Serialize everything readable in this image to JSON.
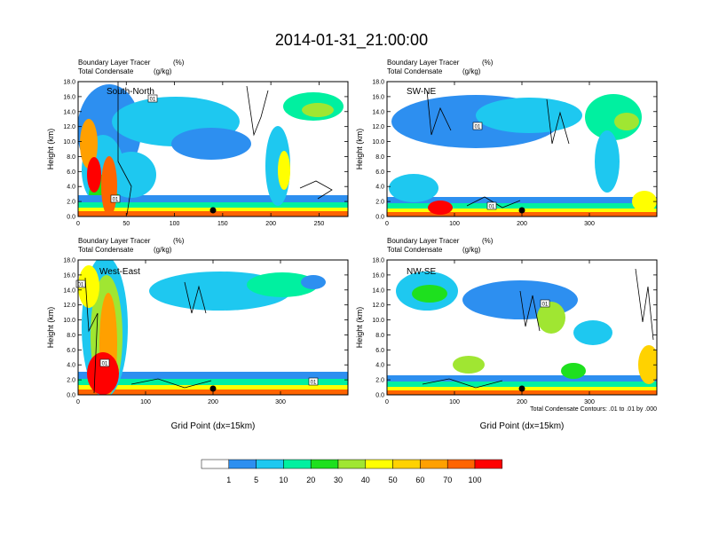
{
  "figure": {
    "title": "2014-01-31_21:00:00",
    "contour_note": "Total Condensate Contours: .01 to .01 by .000",
    "x_axis_label": "Grid Point (dx=15km)"
  },
  "colorbar": {
    "levels": [
      "1",
      "5",
      "10",
      "20",
      "30",
      "40",
      "50",
      "60",
      "70",
      "100"
    ],
    "colors": [
      "#ffffff",
      "#2d8ff0",
      "#1ec8f0",
      "#00f0a0",
      "#1ee01e",
      "#a0e632",
      "#ffff00",
      "#ffd200",
      "#ffa000",
      "#ff6400",
      "#ff0000"
    ]
  },
  "chart_data": [
    {
      "type": "heatmap",
      "name": "South-North",
      "title": "Boundary Layer Tracer (%)",
      "subtitle": "Total Condensate (g/kg)",
      "title_left": "Boundary Layer Tracer",
      "title_right": "(%)",
      "subtitle_left": "Total Condensate",
      "subtitle_right": "(g/kg)",
      "xlabel": "",
      "ylabel": "Height (km)",
      "xlim": [
        0,
        280
      ],
      "ylim": [
        0,
        18
      ],
      "x_ticks": [
        "0",
        "50",
        "100",
        "150",
        "200",
        "250"
      ],
      "y_ticks": [
        "0.0",
        "2.0",
        "4.0",
        "6.0",
        "8.0",
        "10.0",
        "12.0",
        "14.0",
        "16.0",
        "18.0"
      ],
      "contour_labels": [
        "01",
        "01"
      ],
      "marker_x": 140
    },
    {
      "type": "heatmap",
      "name": "SW-NE",
      "title": "Boundary Layer Tracer (%)",
      "subtitle": "Total Condensate (g/kg)",
      "title_left": "Boundary Layer Tracer",
      "title_right": "(%)",
      "subtitle_left": "Total Condensate",
      "subtitle_right": "(g/kg)",
      "xlabel": "",
      "ylabel": "Height (km)",
      "xlim": [
        0,
        400
      ],
      "ylim": [
        0,
        18
      ],
      "x_ticks": [
        "0",
        "100",
        "200",
        "300"
      ],
      "y_ticks": [
        "0.0",
        "2.0",
        "4.0",
        "6.0",
        "8.0",
        "10.0",
        "12.0",
        "14.0",
        "16.0",
        "18.0"
      ],
      "contour_labels": [
        "01",
        "01"
      ],
      "marker_x": 200
    },
    {
      "type": "heatmap",
      "name": "West-East",
      "title": "Boundary Layer Tracer (%)",
      "subtitle": "Total Condensate (g/kg)",
      "title_left": "Boundary Layer Tracer",
      "title_right": "(%)",
      "subtitle_left": "Total Condensate",
      "subtitle_right": "(g/kg)",
      "xlabel": "Grid Point (dx=15km)",
      "ylabel": "Height (km)",
      "xlim": [
        0,
        400
      ],
      "ylim": [
        0,
        18
      ],
      "x_ticks": [
        "0",
        "100",
        "200",
        "300"
      ],
      "y_ticks": [
        "0.0",
        "2.0",
        "4.0",
        "6.0",
        "8.0",
        "10.0",
        "12.0",
        "14.0",
        "16.0",
        "18.0"
      ],
      "contour_labels": [
        "01",
        "01",
        "01"
      ],
      "marker_x": 200
    },
    {
      "type": "heatmap",
      "name": "NW-SE",
      "title": "Boundary Layer Tracer (%)",
      "subtitle": "Total Condensate (g/kg)",
      "title_left": "Boundary Layer Tracer",
      "title_right": "(%)",
      "subtitle_left": "Total Condensate",
      "subtitle_right": "(g/kg)",
      "xlabel": "Grid Point (dx=15km)",
      "ylabel": "Height (km)",
      "xlim": [
        0,
        400
      ],
      "ylim": [
        0,
        18
      ],
      "x_ticks": [
        "0",
        "100",
        "200",
        "300"
      ],
      "y_ticks": [
        "0.0",
        "2.0",
        "4.0",
        "6.0",
        "8.0",
        "10.0",
        "12.0",
        "14.0",
        "16.0",
        "18.0"
      ],
      "contour_labels": [
        "01"
      ],
      "marker_x": 200
    }
  ]
}
